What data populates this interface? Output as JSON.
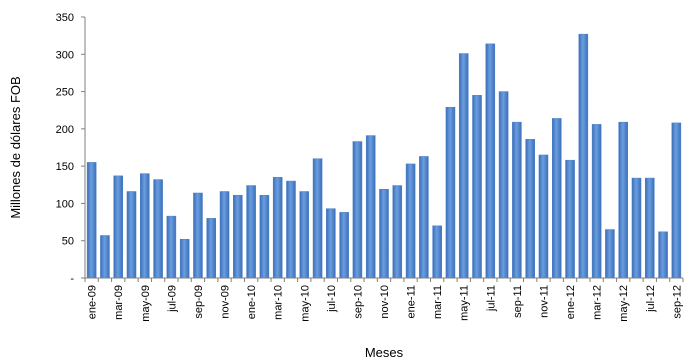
{
  "chart_data": {
    "type": "bar",
    "xlabel": "Meses",
    "ylabel": "Millones de dólares FOB",
    "ylim": [
      0,
      350
    ],
    "y_ticks": [
      {
        "value": 0,
        "label": "-"
      },
      {
        "value": 50,
        "label": "50"
      },
      {
        "value": 100,
        "label": "100"
      },
      {
        "value": 150,
        "label": "150"
      },
      {
        "value": 200,
        "label": "200"
      },
      {
        "value": 250,
        "label": "250"
      },
      {
        "value": 300,
        "label": "300"
      },
      {
        "value": 350,
        "label": "350"
      }
    ],
    "x_tick_labels": [
      "ene-09",
      "mar-09",
      "may-09",
      "jul-09",
      "sep-09",
      "nov-09",
      "ene-10",
      "mar-10",
      "may-10",
      "jul-10",
      "sep-10",
      "nov-10",
      "ene-11",
      "mar-11",
      "may-11",
      "jul-11",
      "sep-11",
      "nov-11",
      "ene-12",
      "mar-12",
      "may-12",
      "jul-12",
      "sep-12"
    ],
    "categories": [
      "ene-09",
      "feb-09",
      "mar-09",
      "abr-09",
      "may-09",
      "jun-09",
      "jul-09",
      "ago-09",
      "sep-09",
      "oct-09",
      "nov-09",
      "dic-09",
      "ene-10",
      "feb-10",
      "mar-10",
      "abr-10",
      "may-10",
      "jun-10",
      "jul-10",
      "ago-10",
      "sep-10",
      "oct-10",
      "nov-10",
      "dic-10",
      "ene-11",
      "feb-11",
      "mar-11",
      "abr-11",
      "may-11",
      "jun-11",
      "jul-11",
      "ago-11",
      "sep-11",
      "oct-11",
      "nov-11",
      "dic-11",
      "ene-12",
      "feb-12",
      "mar-12",
      "abr-12",
      "may-12",
      "jun-12",
      "jul-12",
      "ago-12",
      "sep-12"
    ],
    "values": [
      155,
      57,
      137,
      116,
      140,
      132,
      83,
      52,
      114,
      80,
      116,
      111,
      124,
      111,
      135,
      130,
      116,
      160,
      93,
      88,
      183,
      191,
      119,
      124,
      153,
      163,
      70,
      229,
      301,
      245,
      314,
      250,
      209,
      186,
      165,
      214,
      158,
      327,
      206,
      65,
      209,
      134,
      134,
      62,
      208
    ],
    "bar_color": "#4a7fc8",
    "grid": false
  }
}
